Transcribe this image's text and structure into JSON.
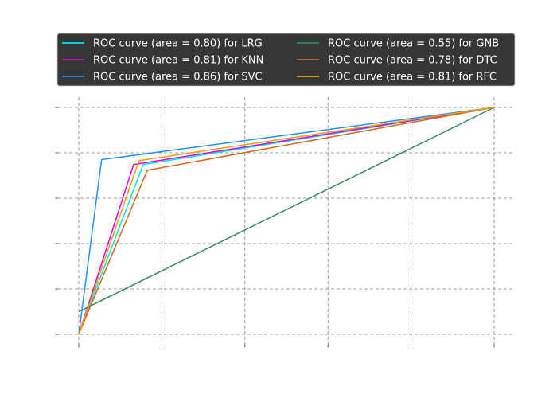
{
  "chart_data": {
    "type": "line",
    "title": "",
    "xlabel": "",
    "ylabel": "",
    "xlim": [
      0,
      1
    ],
    "ylim": [
      0,
      1
    ],
    "grid": true,
    "legend_position": "top",
    "x_ticks": [
      0,
      0.2,
      0.4,
      0.6,
      0.8,
      1.0
    ],
    "y_ticks": [
      0,
      0.2,
      0.4,
      0.6,
      0.8,
      1.0
    ],
    "series": [
      {
        "name": "ROC curve (area = 0.80) for LRG",
        "color": "#00e5ee",
        "x": [
          0,
          0.155,
          1
        ],
        "y": [
          0,
          0.748,
          1
        ]
      },
      {
        "name": "ROC curve (area = 0.81) for KNN",
        "color": "#e000e0",
        "x": [
          0,
          0.132,
          1
        ],
        "y": [
          0,
          0.748,
          1
        ]
      },
      {
        "name": "ROC curve (area = 0.86) for SVC",
        "color": "#1e90ff",
        "x": [
          0,
          0.055,
          1
        ],
        "y": [
          0,
          0.77,
          1
        ]
      },
      {
        "name": "ROC curve (area = 0.55) for GNB",
        "color": "#2e8b57",
        "x": [
          0,
          1
        ],
        "y": [
          0.1,
          1
        ]
      },
      {
        "name": "ROC curve (area = 0.78) for DTC",
        "color": "#d2691e",
        "x": [
          0,
          0.165,
          1
        ],
        "y": [
          0,
          0.723,
          1
        ]
      },
      {
        "name": "ROC curve (area = 0.81) for RFC",
        "color": "#f0a000",
        "x": [
          0,
          0.145,
          1
        ],
        "y": [
          0,
          0.766,
          1
        ]
      }
    ]
  }
}
